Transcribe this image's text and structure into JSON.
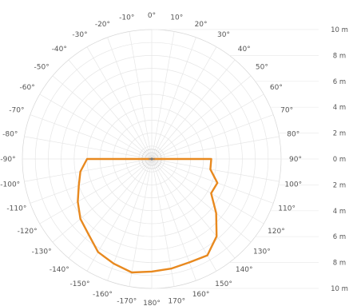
{
  "chart_data": {
    "type": "polar-line",
    "angle_unit": "degrees",
    "angle_zero": "top",
    "angle_direction": "clockwise",
    "angle_ticks": [
      {
        "deg": 0,
        "label": "0°"
      },
      {
        "deg": 10,
        "label": "10°"
      },
      {
        "deg": 20,
        "label": "20°"
      },
      {
        "deg": 30,
        "label": "30°"
      },
      {
        "deg": 40,
        "label": "40°"
      },
      {
        "deg": 50,
        "label": "50°"
      },
      {
        "deg": 60,
        "label": "60°"
      },
      {
        "deg": 70,
        "label": "70°"
      },
      {
        "deg": 80,
        "label": "80°"
      },
      {
        "deg": 90,
        "label": "90°"
      },
      {
        "deg": 100,
        "label": "100°"
      },
      {
        "deg": 110,
        "label": "110°"
      },
      {
        "deg": 120,
        "label": "120°"
      },
      {
        "deg": 130,
        "label": "130°"
      },
      {
        "deg": 140,
        "label": "140°"
      },
      {
        "deg": 150,
        "label": "150°"
      },
      {
        "deg": 160,
        "label": "160°"
      },
      {
        "deg": 170,
        "label": "170°"
      },
      {
        "deg": 180,
        "label": "180°"
      },
      {
        "deg": -170,
        "label": "-170°"
      },
      {
        "deg": -160,
        "label": "-160°"
      },
      {
        "deg": -150,
        "label": "-150°"
      },
      {
        "deg": -140,
        "label": "-140°"
      },
      {
        "deg": -130,
        "label": "-130°"
      },
      {
        "deg": -120,
        "label": "-120°"
      },
      {
        "deg": -110,
        "label": "-110°"
      },
      {
        "deg": -100,
        "label": "-100°"
      },
      {
        "deg": -90,
        "label": "-90°"
      },
      {
        "deg": -80,
        "label": "-80°"
      },
      {
        "deg": -70,
        "label": "-70°"
      },
      {
        "deg": -60,
        "label": "-60°"
      },
      {
        "deg": -50,
        "label": "-50°"
      },
      {
        "deg": -40,
        "label": "-40°"
      },
      {
        "deg": -30,
        "label": "-30°"
      },
      {
        "deg": -20,
        "label": "-20°"
      },
      {
        "deg": -10,
        "label": "-10°"
      }
    ],
    "radial_max": 10,
    "radial_unit": "m",
    "radial_grid_step": 1,
    "distance_labels": [
      {
        "value": 10,
        "label": "10 m"
      },
      {
        "value": 8,
        "label": "8 m"
      },
      {
        "value": 6,
        "label": "6 m"
      },
      {
        "value": 4,
        "label": "4 m"
      },
      {
        "value": 2,
        "label": "2 m"
      },
      {
        "value": 0,
        "label": "0 m"
      },
      {
        "value": 2,
        "label": "2 m"
      },
      {
        "value": 4,
        "label": "4 m"
      },
      {
        "value": 6,
        "label": "6 m"
      },
      {
        "value": 8,
        "label": "8 m"
      },
      {
        "value": 10,
        "label": "10 m"
      }
    ],
    "grid": true,
    "series": [
      {
        "color": "#e8891f",
        "points": [
          {
            "angle": 90,
            "r": 4.6
          },
          {
            "angle": 100,
            "r": 4.6
          },
          {
            "angle": 110,
            "r": 5.4
          },
          {
            "angle": 120,
            "r": 5.3
          },
          {
            "angle": 130,
            "r": 6.5
          },
          {
            "angle": 140,
            "r": 7.8
          },
          {
            "angle": 150,
            "r": 8.6
          },
          {
            "angle": 160,
            "r": 8.5
          },
          {
            "angle": 170,
            "r": 8.6
          },
          {
            "angle": 180,
            "r": 8.7
          },
          {
            "angle": -170,
            "r": 8.9
          },
          {
            "angle": -160,
            "r": 8.6
          },
          {
            "angle": -150,
            "r": 8.3
          },
          {
            "angle": -140,
            "r": 7.6
          },
          {
            "angle": -130,
            "r": 7.2
          },
          {
            "angle": -120,
            "r": 6.6
          },
          {
            "angle": -110,
            "r": 6.0
          },
          {
            "angle": -100,
            "r": 5.6
          },
          {
            "angle": -90,
            "r": 5.0
          }
        ]
      }
    ]
  }
}
